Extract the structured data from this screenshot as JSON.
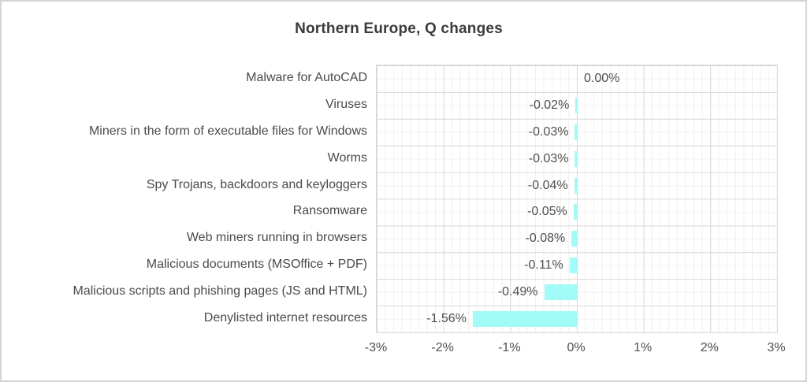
{
  "chart_data": {
    "type": "bar",
    "orientation": "horizontal",
    "title": "Northern Europe, Q changes",
    "categories": [
      "Malware for AutoCAD",
      "Viruses",
      "Miners in the form of executable files for Windows",
      "Worms",
      "Spy Trojans, backdoors and keyloggers",
      "Ransomware",
      "Web miners running in browsers",
      "Malicious documents (MSOffice + PDF)",
      "Malicious scripts and phishing pages (JS and HTML)",
      "Denylisted internet resources"
    ],
    "values": [
      0.0,
      -0.02,
      -0.03,
      -0.03,
      -0.04,
      -0.05,
      -0.08,
      -0.11,
      -0.49,
      -1.56
    ],
    "value_labels": [
      "0.00%",
      "-0.02%",
      "-0.03%",
      "-0.03%",
      "-0.04%",
      "-0.05%",
      "-0.08%",
      "-0.11%",
      "-0.49%",
      "-1.56%"
    ],
    "xlabel": "",
    "ylabel": "",
    "x_ticks": [
      "-3%",
      "-2%",
      "-1%",
      "0%",
      "1%",
      "2%",
      "3%"
    ],
    "xlim": [
      -3,
      3
    ],
    "x_major_unit_pct": 1,
    "x_minor_unit_pct": 0.125,
    "grid": true,
    "legend": false,
    "colors": {
      "bar_fill": "#a1fbf8",
      "grid_major": "#d9d9d9",
      "grid_minor": "#efefef",
      "title_text": "#3b3b3b",
      "label_text": "#4f4f4f"
    }
  }
}
